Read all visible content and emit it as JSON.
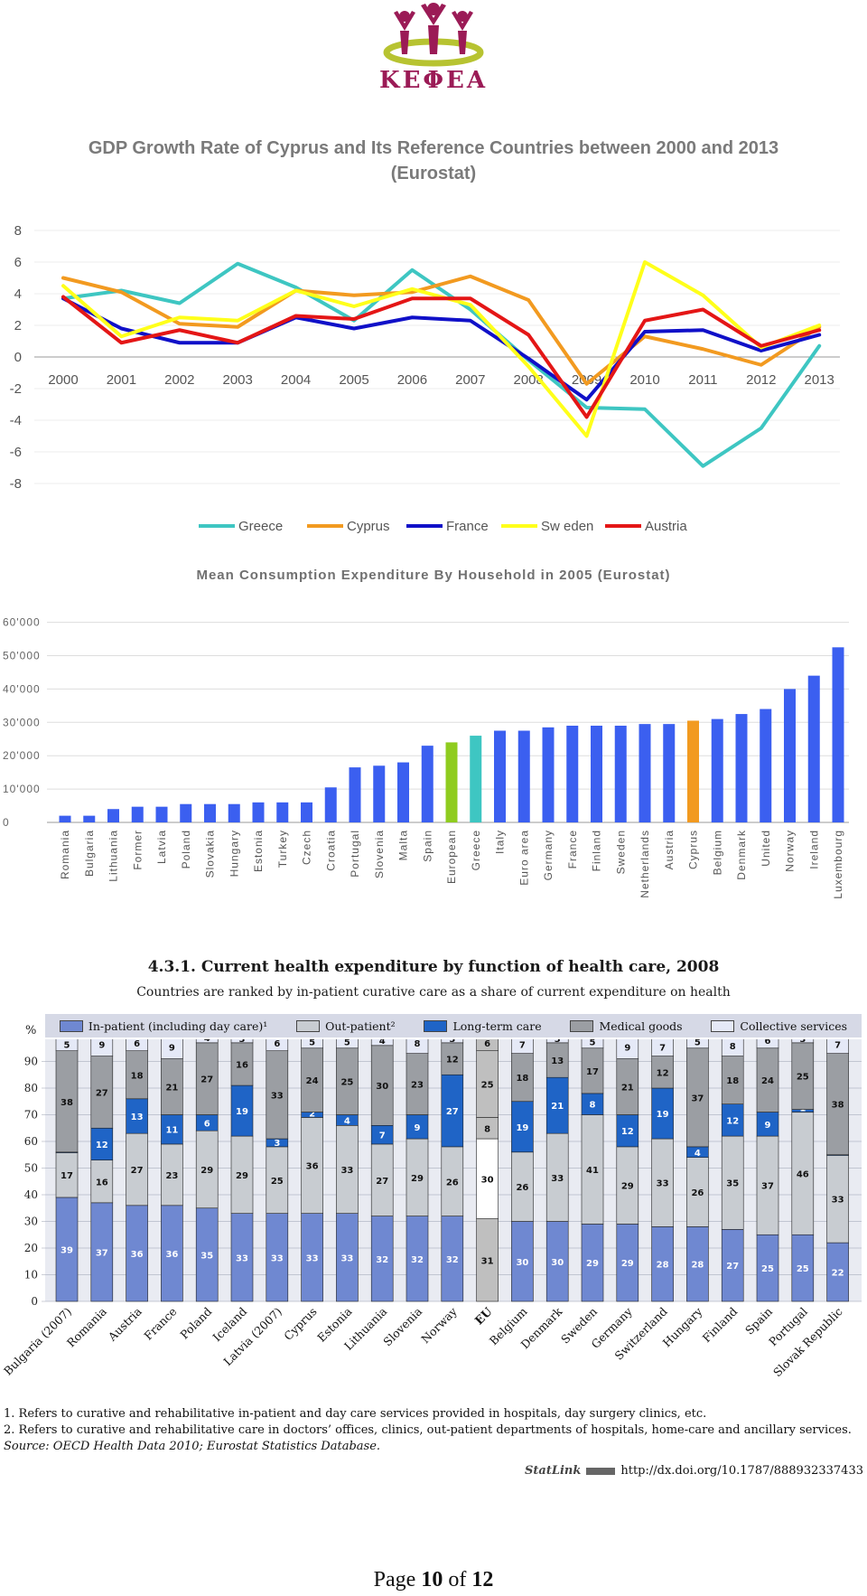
{
  "logo": {
    "text": "ΚΕΦΕΑ",
    "colors": [
      "#9b1b56",
      "#b7c331"
    ]
  },
  "chart_data": [
    {
      "type": "line",
      "title": "GDP Growth Rate of Cyprus and Its Reference Countries between 2000 and 2013 (Eurostat)",
      "categories": [
        "2000",
        "2001",
        "2002",
        "2003",
        "2004",
        "2005",
        "2006",
        "2007",
        "2008",
        "2009",
        "2010",
        "2011",
        "2012",
        "2013"
      ],
      "ylim": [
        -8,
        8
      ],
      "yticks": [
        8,
        6,
        4,
        2,
        0,
        -2,
        -4,
        -6,
        -8
      ],
      "series": [
        {
          "name": "Greece",
          "color": "#3ec6c2",
          "values": [
            3.7,
            4.2,
            3.4,
            5.9,
            4.4,
            2.3,
            5.5,
            3.0,
            -0.2,
            -3.2,
            -3.3,
            -6.9,
            -4.5,
            0.7
          ]
        },
        {
          "name": "Cyprus",
          "color": "#f29a20",
          "values": [
            5.0,
            4.1,
            2.1,
            1.9,
            4.2,
            3.9,
            4.1,
            5.1,
            3.6,
            -1.7,
            1.3,
            0.5,
            -0.5,
            1.9
          ]
        },
        {
          "name": "France",
          "color": "#1010c8",
          "values": [
            3.7,
            1.8,
            0.9,
            0.9,
            2.5,
            1.8,
            2.5,
            2.3,
            -0.1,
            -2.7,
            1.6,
            1.7,
            0.4,
            1.4
          ]
        },
        {
          "name": "Sw eden",
          "color": "#ffff1a",
          "values": [
            4.5,
            1.3,
            2.5,
            2.3,
            4.2,
            3.2,
            4.3,
            3.3,
            -0.6,
            -5.0,
            6.0,
            3.9,
            0.6,
            2.0
          ]
        },
        {
          "name": "Austria",
          "color": "#e41616",
          "values": [
            3.8,
            0.9,
            1.7,
            0.9,
            2.6,
            2.4,
            3.7,
            3.7,
            1.4,
            -3.8,
            2.3,
            3.0,
            0.7,
            1.7
          ]
        }
      ]
    },
    {
      "type": "bar",
      "title": "Mean Consumption Expenditure By Household in 2005 (Eurostat)",
      "categories": [
        "Romania",
        "Bulgaria",
        "Lithuania",
        "Former",
        "Latvia",
        "Poland",
        "Slovakia",
        "Hungary",
        "Estonia",
        "Turkey",
        "Czech",
        "Croatia",
        "Portugal",
        "Slovenia",
        "Malta",
        "Spain",
        "European",
        "Greece",
        "Italy",
        "Euro area",
        "Germany",
        "France",
        "Finland",
        "Sweden",
        "Netherlands",
        "Austria",
        "Cyprus",
        "Belgium",
        "Denmark",
        "United",
        "Norway",
        "Ireland",
        "Luxembourg"
      ],
      "values": [
        2000,
        2000,
        4000,
        4700,
        4700,
        5500,
        5500,
        5500,
        6000,
        6000,
        6000,
        10500,
        16500,
        17000,
        18000,
        23000,
        24000,
        26000,
        27500,
        27500,
        28500,
        29000,
        29000,
        29000,
        29500,
        29500,
        30500,
        31000,
        32500,
        34000,
        40000,
        44000,
        52500
      ],
      "highlight": {
        "European": "#8fcc1f",
        "Greece": "#3ec6c2",
        "Cyprus": "#f29a20"
      },
      "bar_color": "#3b5ff0",
      "ylim": [
        0,
        60000
      ],
      "yticks": [
        "60'000",
        "50'000",
        "40'000",
        "30'000",
        "20'000",
        "10'000",
        "0"
      ]
    },
    {
      "type": "bar",
      "stacked": true,
      "title": "4.3.1.  Current health expenditure by function of health care, 2008",
      "subtitle": "Countries are ranked by in-patient curative care as a share of current expenditure on health",
      "ylabel": "%",
      "ylim": [
        0,
        100
      ],
      "yticks": [
        "100",
        "90",
        "80",
        "70",
        "60",
        "50",
        "40",
        "30",
        "20",
        "10",
        "0"
      ],
      "categories": [
        "Bulgaria (2007)",
        "Romania",
        "Austria",
        "France",
        "Poland",
        "Iceland",
        "Latvia (2007)",
        "Cyprus",
        "Estonia",
        "Lithuania",
        "Slovenia",
        "Norway",
        "EU",
        "Belgium",
        "Denmark",
        "Sweden",
        "Germany",
        "Switzerland",
        "Hungary",
        "Finland",
        "Spain",
        "Portugal",
        "Slovak Republic"
      ],
      "legend": [
        "In-patient (including day care)¹",
        "Out-patient²",
        "Long-term care",
        "Medical goods",
        "Collective services"
      ],
      "series": [
        {
          "name": "In-patient",
          "color": "#6f88d1",
          "values": [
            39,
            37,
            36,
            36,
            35,
            33,
            33,
            33,
            33,
            32,
            32,
            32,
            31,
            30,
            30,
            29,
            29,
            28,
            28,
            27,
            25,
            25,
            22
          ]
        },
        {
          "name": "Out-patient",
          "color": "#c8ccd1",
          "values": [
            17,
            16,
            27,
            23,
            29,
            29,
            25,
            36,
            33,
            27,
            29,
            26,
            30,
            26,
            33,
            41,
            29,
            33,
            26,
            35,
            37,
            46,
            33
          ]
        },
        {
          "name": "Long-term care",
          "color": "#1f64c6",
          "values": [
            0,
            12,
            13,
            11,
            6,
            19,
            3,
            2,
            4,
            7,
            9,
            27,
            8,
            19,
            21,
            8,
            12,
            19,
            4,
            12,
            9,
            1,
            0
          ]
        },
        {
          "name": "Medical goods",
          "color": "#9b9ea3",
          "values": [
            38,
            27,
            18,
            21,
            27,
            16,
            33,
            24,
            25,
            30,
            23,
            12,
            25,
            18,
            13,
            17,
            21,
            12,
            37,
            18,
            24,
            25,
            38
          ]
        },
        {
          "name": "Collective services",
          "color": "#e5e9f7",
          "values": [
            5,
            9,
            6,
            9,
            4,
            3,
            6,
            5,
            5,
            4,
            8,
            3,
            6,
            7,
            3,
            5,
            9,
            7,
            5,
            8,
            6,
            3,
            7
          ]
        }
      ]
    }
  ],
  "notes": [
    "1.  Refers to curative and rehabilitative in-patient and day care services provided in hospitals, day surgery clinics, etc.",
    "2.  Refers to curative and rehabilitative care in doctors’ offices, clinics, out-patient departments of hospitals, home-care and ancillary services."
  ],
  "source": "Source:  OECD Health Data 2010; Eurostat Statistics Database.",
  "statlink": {
    "label": "StatLink",
    "url": "http://dx.doi.org/10.1787/888932337433"
  },
  "page": {
    "prefix": "Page ",
    "current": "10",
    "mid": " of ",
    "total": "12"
  }
}
